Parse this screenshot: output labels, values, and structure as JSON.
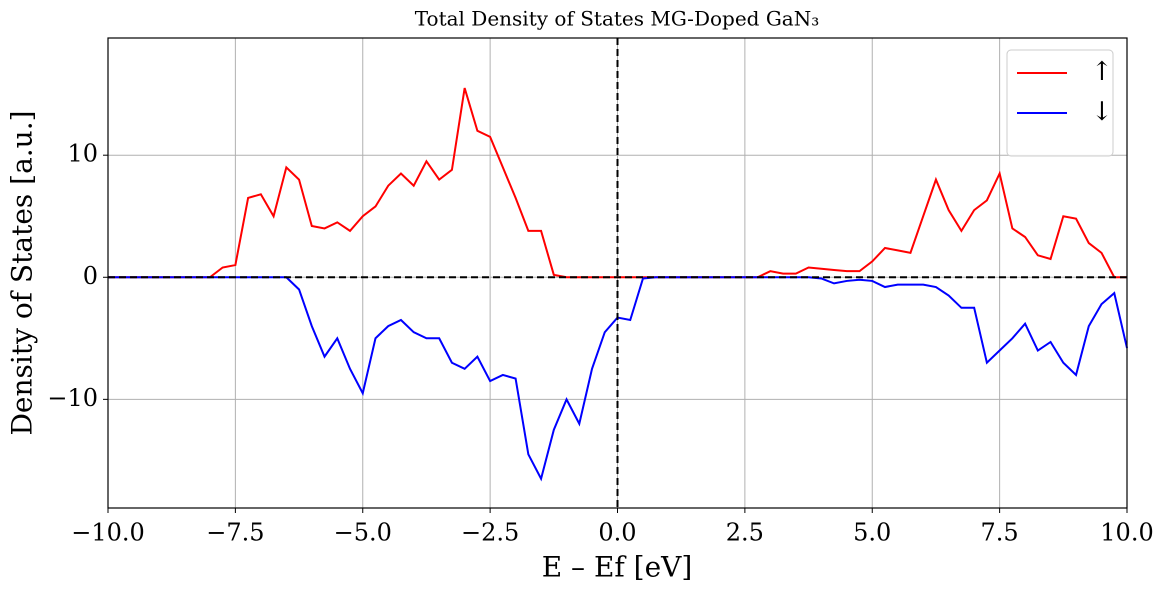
{
  "chart_data": {
    "type": "line",
    "title": "Total Density of States MG-Doped GaN₃",
    "xlabel": "E – Ef [eV]",
    "ylabel": "Density of States [a.u.]",
    "x": [
      -10,
      -9.75,
      -9.5,
      -9.25,
      -9,
      -8.75,
      -8.5,
      -8.25,
      -8,
      -7.75,
      -7.5,
      -7.25,
      -7,
      -6.75,
      -6.5,
      -6.25,
      -6,
      -5.75,
      -5.5,
      -5.25,
      -5,
      -4.75,
      -4.5,
      -4.25,
      -4,
      -3.75,
      -3.5,
      -3.25,
      -3,
      -2.75,
      -2.5,
      -2.25,
      -2,
      -1.75,
      -1.5,
      -1.25,
      -1,
      -0.75,
      -0.5,
      -0.25,
      0,
      0.25,
      0.5,
      0.75,
      1,
      1.25,
      1.5,
      1.75,
      2,
      2.25,
      2.5,
      2.75,
      3,
      3.25,
      3.5,
      3.75,
      4,
      4.25,
      4.5,
      4.75,
      5,
      5.25,
      5.5,
      5.75,
      6,
      6.25,
      6.5,
      6.75,
      7,
      7.25,
      7.5,
      7.75,
      8,
      8.25,
      8.5,
      8.75,
      9,
      9.25,
      9.5,
      9.75,
      10
    ],
    "series": [
      {
        "name": "↑",
        "color": "#ff0000",
        "values": [
          0,
          0,
          0,
          0,
          0,
          0,
          0,
          0,
          0,
          0.8,
          1.0,
          6.5,
          6.8,
          5.0,
          9.0,
          8.0,
          4.2,
          4.0,
          4.5,
          3.8,
          5.0,
          5.8,
          7.5,
          8.5,
          7.5,
          9.5,
          8.0,
          8.8,
          15.5,
          12.0,
          11.5,
          9.0,
          6.5,
          3.8,
          3.8,
          0.2,
          0,
          0,
          0,
          0,
          0,
          0,
          0,
          0,
          0,
          0,
          0,
          0,
          0,
          0,
          0,
          0,
          0.5,
          0.3,
          0.3,
          0.8,
          0.7,
          0.6,
          0.5,
          0.5,
          1.3,
          2.4,
          2.2,
          2.0,
          5.0,
          8.0,
          5.5,
          3.8,
          5.5,
          6.3,
          8.5,
          4.0,
          3.3,
          1.8,
          1.5,
          5.0,
          4.8,
          2.8,
          2.0,
          0,
          0
        ]
      },
      {
        "name": "↓",
        "color": "#0000ff",
        "values": [
          0,
          0,
          0,
          0,
          0,
          0,
          0,
          0,
          0,
          0,
          0,
          0,
          0,
          0,
          0,
          -1.0,
          -4.0,
          -6.5,
          -5.0,
          -7.5,
          -9.5,
          -5.0,
          -4.0,
          -3.5,
          -4.5,
          -5.0,
          -5.0,
          -7.0,
          -7.5,
          -6.5,
          -8.5,
          -8.0,
          -8.3,
          -14.5,
          -16.5,
          -12.5,
          -10.0,
          -12.0,
          -7.5,
          -4.5,
          -3.3,
          -3.5,
          -0.1,
          0,
          0,
          0,
          0,
          0,
          0,
          0,
          0,
          0,
          0,
          0,
          0,
          0,
          -0.1,
          -0.5,
          -0.3,
          -0.2,
          -0.3,
          -0.8,
          -0.6,
          -0.6,
          -0.6,
          -0.8,
          -1.5,
          -2.5,
          -2.5,
          -7.0,
          -6.0,
          -5.0,
          -3.8,
          -6.0,
          -5.3,
          -7.0,
          -8.0,
          -4.0,
          -2.2,
          -1.3,
          -5.8
        ]
      }
    ],
    "xlim": [
      -10,
      10
    ],
    "xticks": [
      {
        "value": -10,
        "label": "−10.0"
      },
      {
        "value": -7.5,
        "label": "−7.5"
      },
      {
        "value": -5,
        "label": "−5.0"
      },
      {
        "value": -2.5,
        "label": "−2.5"
      },
      {
        "value": 0,
        "label": "0.0"
      },
      {
        "value": 2.5,
        "label": "2.5"
      },
      {
        "value": 5,
        "label": "5.0"
      },
      {
        "value": 7.5,
        "label": "7.5"
      },
      {
        "value": 10,
        "label": "10.0"
      }
    ],
    "ylim": [
      -18.9,
      19.6
    ],
    "yticks": [
      {
        "value": -10,
        "label": "−10"
      },
      0,
      10
    ],
    "hlines": [
      0
    ],
    "vlines": [
      0
    ],
    "grid": true,
    "legend": "upper right"
  }
}
